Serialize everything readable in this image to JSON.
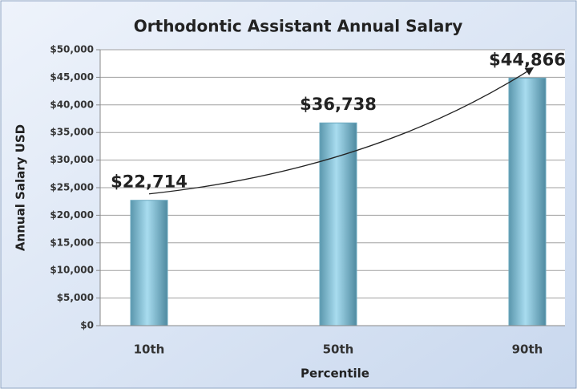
{
  "chart_data": {
    "type": "bar",
    "title": "Orthodontic Assistant Annual Salary",
    "x_label": "Percentile",
    "y_label": "Annual Salary USD",
    "categories": [
      "10th",
      "50th",
      "90th"
    ],
    "values": [
      22714,
      36738,
      44866
    ],
    "value_labels": [
      "$22,714",
      "$36,738",
      "$44,866"
    ],
    "color": "#7fc3dc",
    "ylim": [
      0,
      50000
    ],
    "yticks": [
      {
        "value": 0,
        "label": "$0"
      },
      {
        "value": 5000,
        "label": "$5,000"
      },
      {
        "value": 10000,
        "label": "$10,000"
      },
      {
        "value": 15000,
        "label": "$15,000"
      },
      {
        "value": 20000,
        "label": "$20,000"
      },
      {
        "value": 25000,
        "label": "$25,000"
      },
      {
        "value": 30000,
        "label": "$30,000"
      },
      {
        "value": 35000,
        "label": "$35,000"
      },
      {
        "value": 40000,
        "label": "$40,000"
      },
      {
        "value": 45000,
        "label": "$45,000"
      },
      {
        "value": 50000,
        "label": "$50,000"
      }
    ],
    "grid": true
  }
}
